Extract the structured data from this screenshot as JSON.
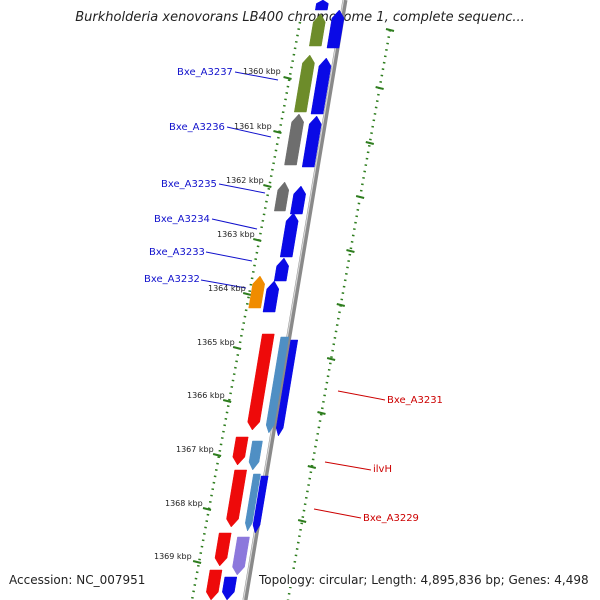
{
  "title": "Burkholderia xenovorans LB400 chromosome 1, complete sequenc...",
  "accession": "Accession: NC_007951",
  "topology": "Topology: circular; Length: 4,895,836 bp; Genes: 4,498",
  "colors": {
    "backbone": "#8a8a8a",
    "tick": "#2e7d1e",
    "label_blue": "#1111cc",
    "label_red": "#cc0000",
    "gene_blue": "#0a0ae6",
    "gene_red": "#ee0a0a",
    "gene_steel": "#4f8fc4",
    "gene_gray": "#6e6e6e",
    "gene_olive": "#6d8c2a",
    "gene_orange": "#f08c00",
    "gene_lavender": "#8c78dc"
  },
  "kbp_labels": [
    "1360 kbp",
    "1361 kbp",
    "1362 kbp",
    "1363 kbp",
    "1364 kbp",
    "1365 kbp",
    "1366 kbp",
    "1367 kbp",
    "1368 kbp",
    "1369 kbp"
  ],
  "gene_labels": [
    {
      "text": "Bxe_A3237",
      "color": "blue"
    },
    {
      "text": "Bxe_A3236",
      "color": "blue"
    },
    {
      "text": "Bxe_A3235",
      "color": "blue"
    },
    {
      "text": "Bxe_A3234",
      "color": "blue"
    },
    {
      "text": "Bxe_A3233",
      "color": "blue"
    },
    {
      "text": "Bxe_A3232",
      "color": "blue"
    },
    {
      "text": "Bxe_A3231",
      "color": "red"
    },
    {
      "text": "ilvH",
      "color": "red"
    },
    {
      "text": "Bxe_A3229",
      "color": "red"
    }
  ]
}
